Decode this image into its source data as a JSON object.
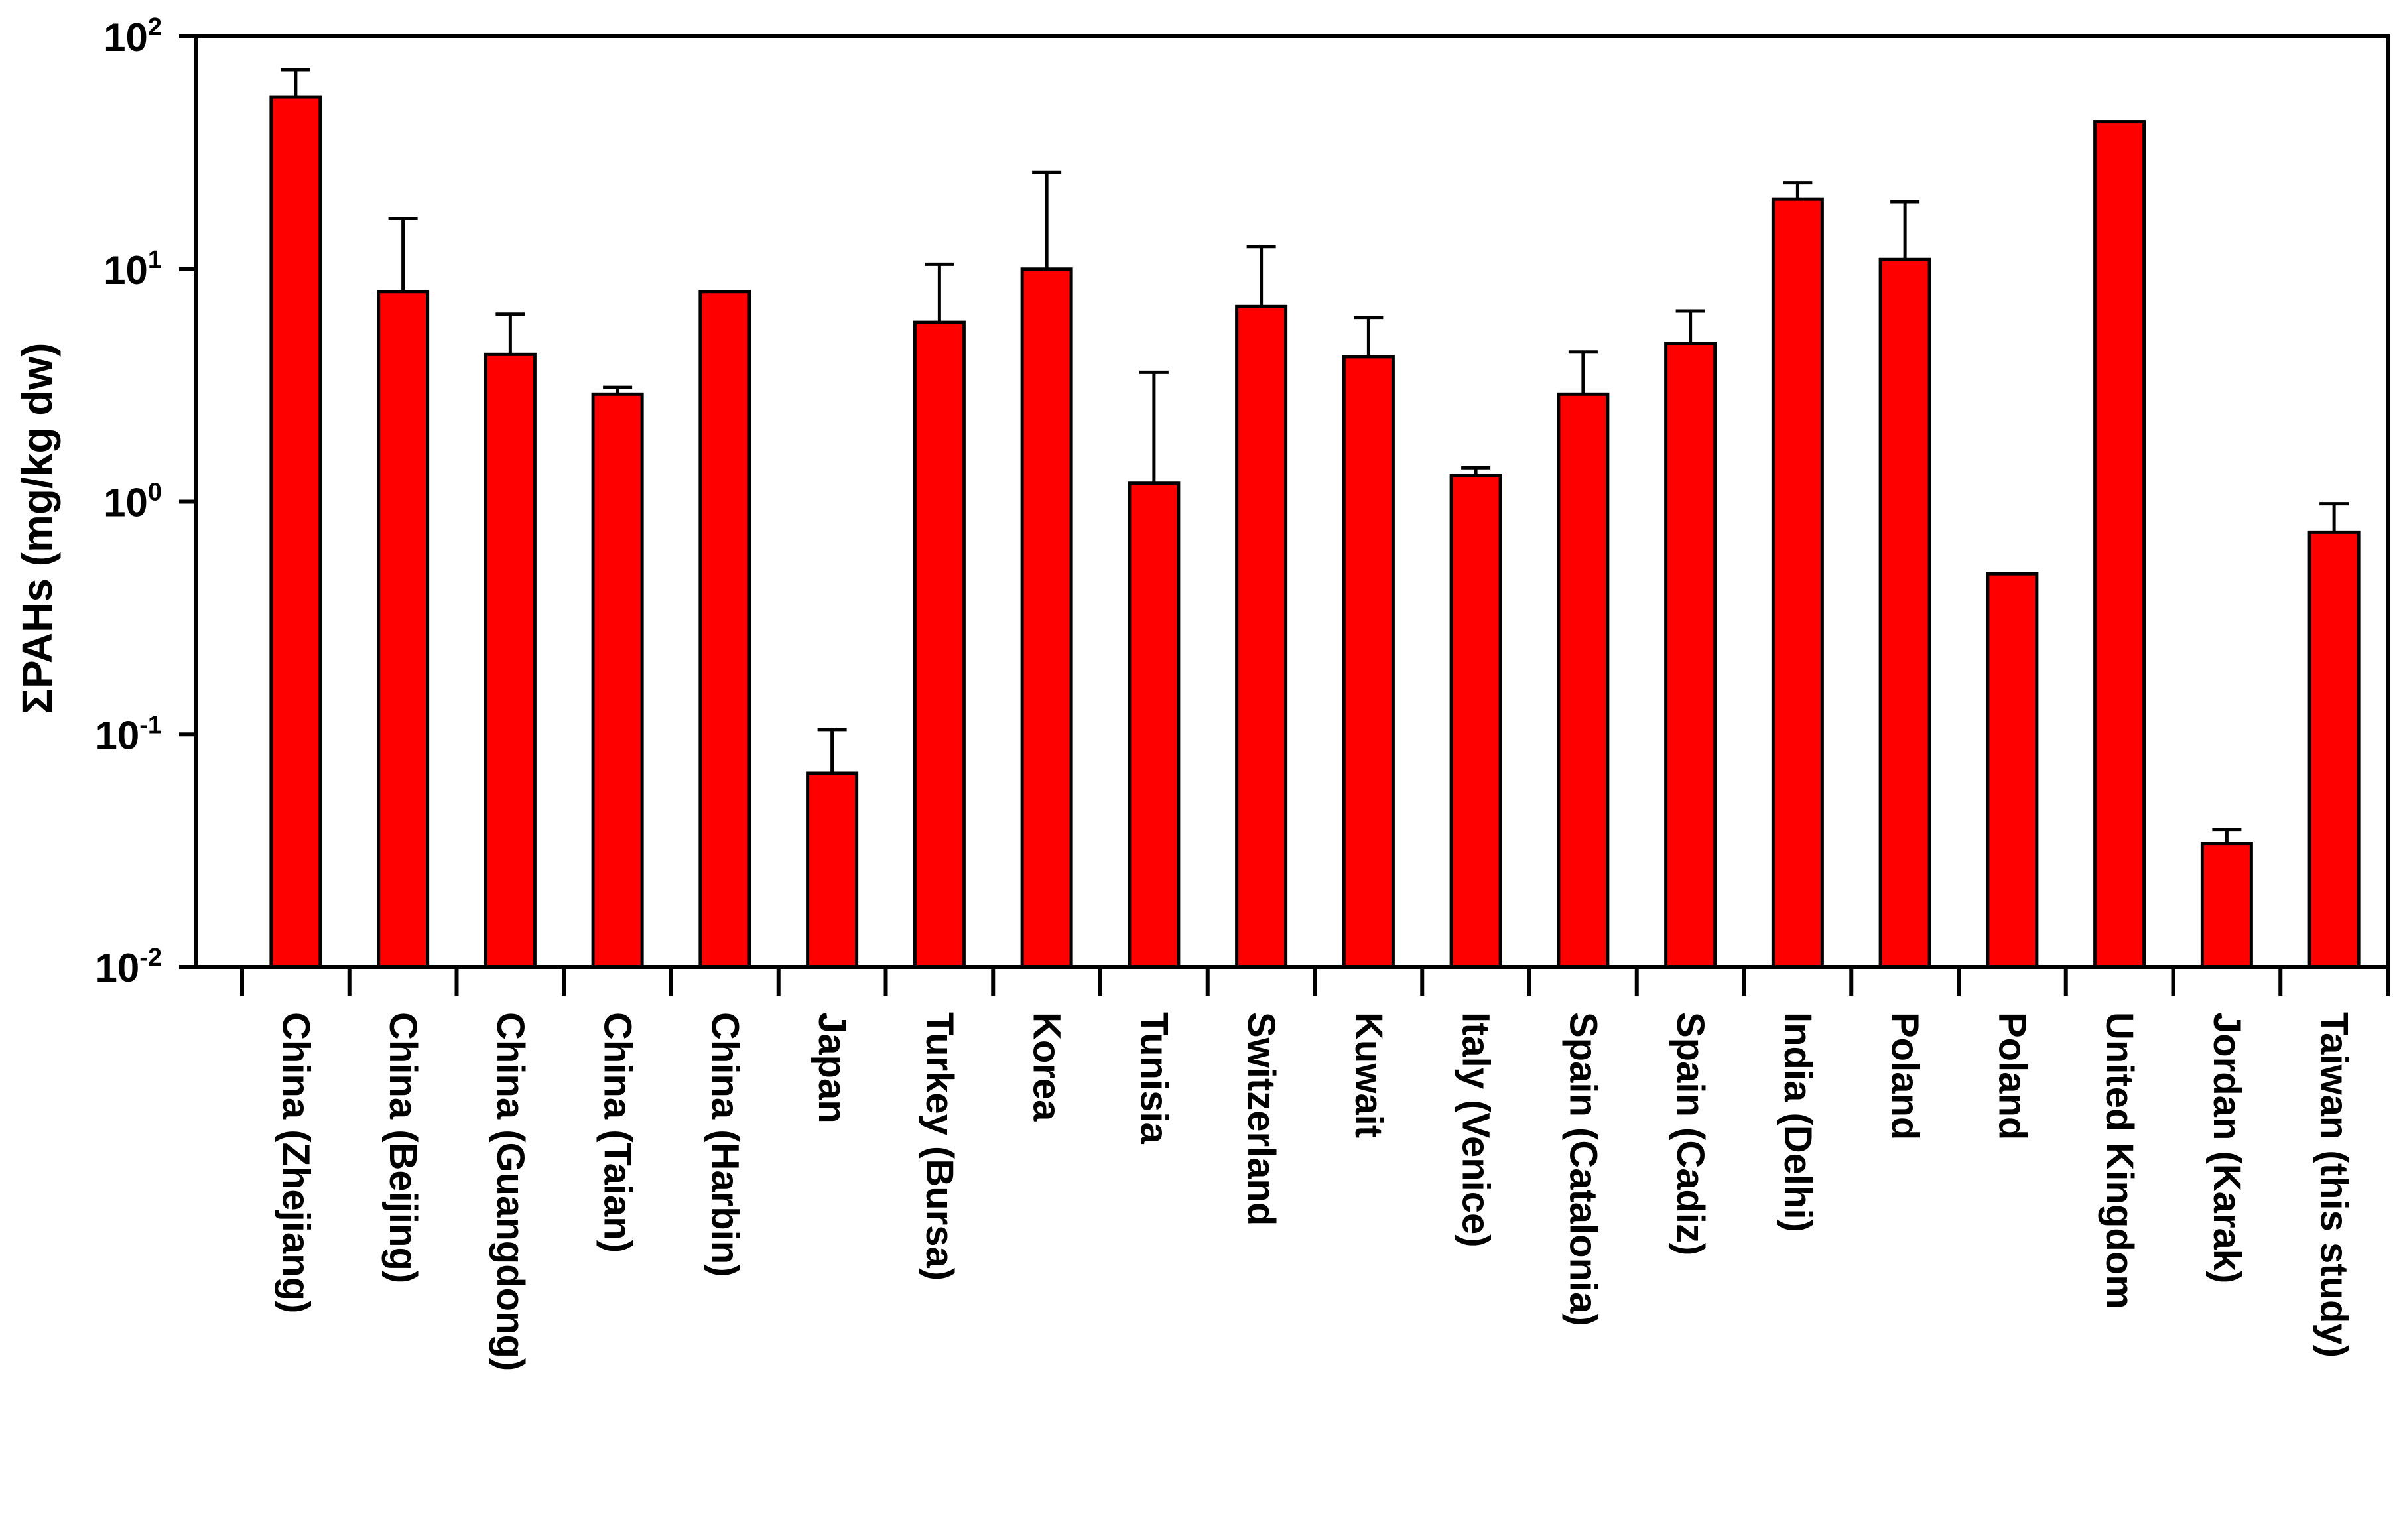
{
  "chart_data": {
    "type": "bar",
    "title": "",
    "xlabel": "",
    "ylabel": "ΣPAHs (mg/kg dw)",
    "yscale": "log",
    "ylim": [
      0.01,
      100
    ],
    "yticks": [
      {
        "base": "10",
        "exp": "-2"
      },
      {
        "base": "10",
        "exp": "-1"
      },
      {
        "base": "10",
        "exp": "0"
      },
      {
        "base": "10",
        "exp": "1"
      },
      {
        "base": "10",
        "exp": "2"
      }
    ],
    "bar_color": "#ff0000",
    "error_color": "#000000",
    "categories": [
      "China (Zhejiang)",
      "China (Beijing)",
      "China (Guangdong)",
      "China (Taian)",
      "China (Harbin)",
      "Japan",
      "Turkey (Bursa)",
      "Korea",
      "Tunisia",
      "Switzerland",
      "Kuwait",
      "Italy (Venice)",
      "Spain (Catalonia)",
      "Spain (Cadiz)",
      "India (Delhi)",
      "Poland",
      "Poland",
      "United Kingdom",
      "Jordan (Karak)",
      "Taiwan (this study)"
    ],
    "values": [
      55,
      8.0,
      4.3,
      2.9,
      8.0,
      0.068,
      5.9,
      10.0,
      1.2,
      6.9,
      4.2,
      1.3,
      2.9,
      4.8,
      20,
      11,
      0.49,
      43,
      0.034,
      0.74
    ],
    "error_upper": [
      72,
      16.5,
      6.4,
      3.1,
      null,
      0.105,
      10.5,
      26,
      3.6,
      12.5,
      6.2,
      1.4,
      4.4,
      6.6,
      23.5,
      19.5,
      null,
      null,
      0.039,
      0.98
    ],
    "grid": false,
    "legend": "none"
  }
}
